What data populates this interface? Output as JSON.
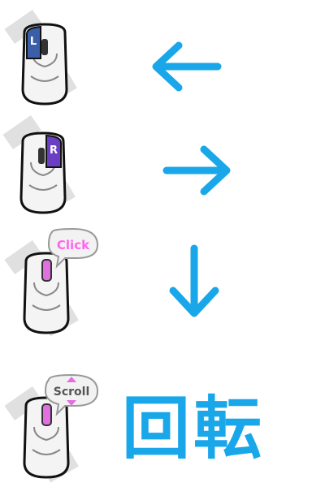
{
  "rows": [
    {
      "action": "left-click",
      "button_label": "L",
      "arrow_icon": "arrow-left-icon"
    },
    {
      "action": "right-click",
      "button_label": "R",
      "arrow_icon": "arrow-right-icon"
    },
    {
      "action": "wheel-click",
      "bubble_label": "Click",
      "arrow_icon": "arrow-down-icon"
    },
    {
      "action": "wheel-scroll",
      "bubble_label": "Scroll",
      "caption": "回転"
    }
  ],
  "colors": {
    "arrow": "#19a7ea",
    "left_button": "#3b5ea8",
    "right_button": "#6a3fc4",
    "wheel_highlight": "#e070e0",
    "bubble_text": "#ff66ee"
  }
}
